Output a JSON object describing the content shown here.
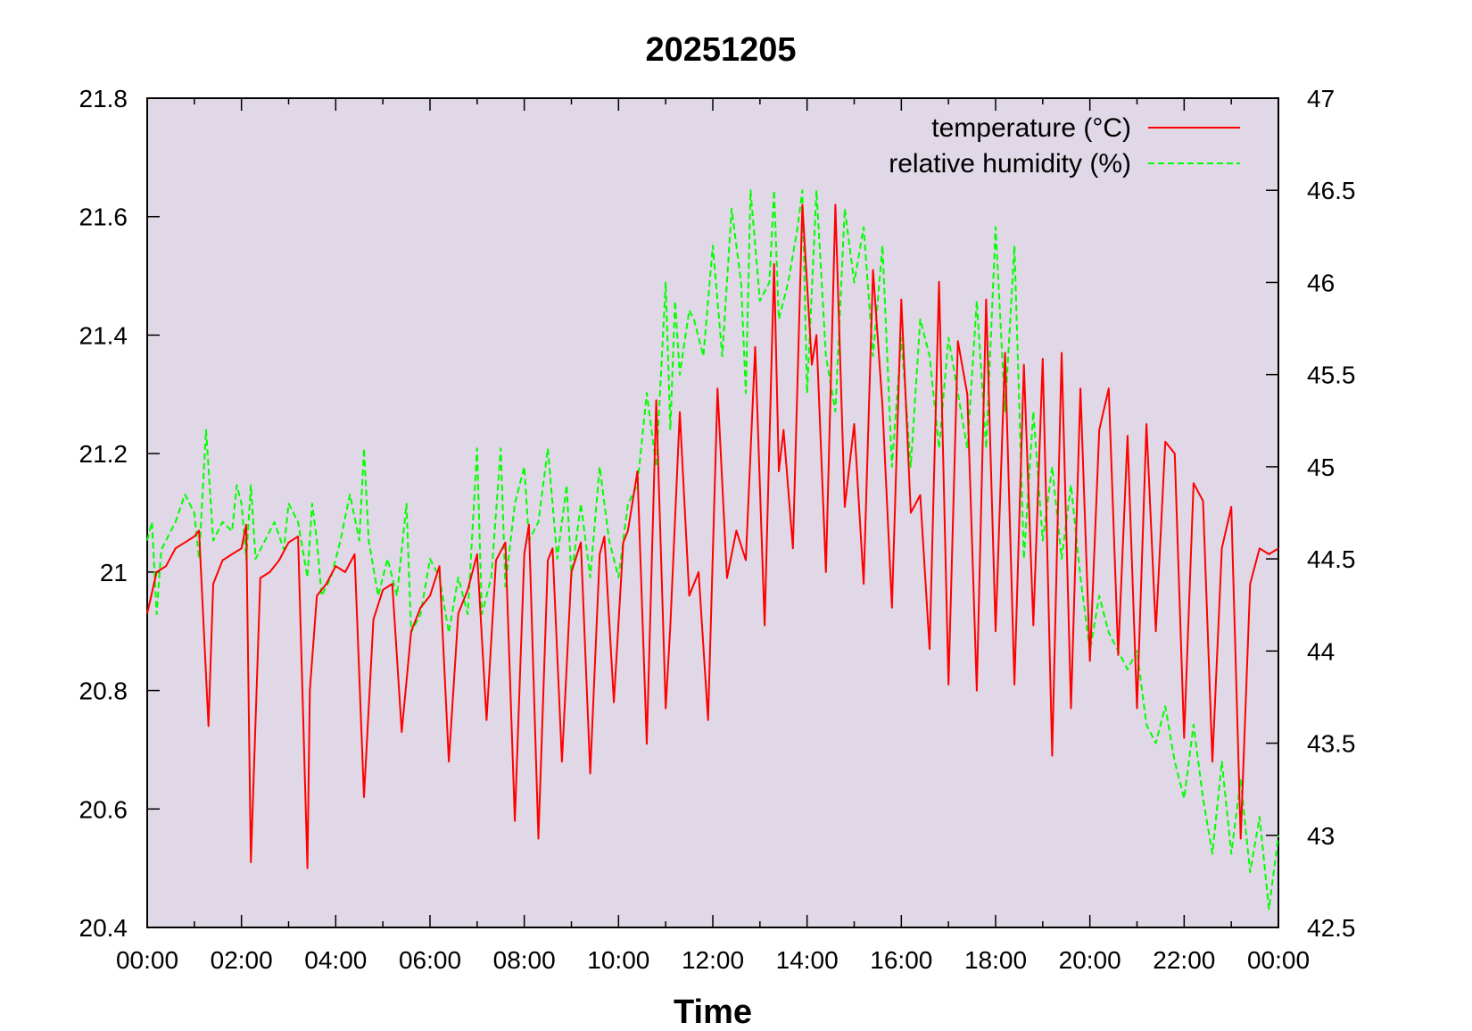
{
  "chart_data": {
    "type": "line",
    "title": "20251205",
    "xlabel": "Time",
    "ylabel": "",
    "y2label": "",
    "xlim": [
      0,
      24
    ],
    "ylim": [
      20.4,
      21.8
    ],
    "y2lim": [
      42.5,
      47
    ],
    "x_ticks": [
      "00:00",
      "02:00",
      "04:00",
      "06:00",
      "08:00",
      "10:00",
      "12:00",
      "14:00",
      "16:00",
      "18:00",
      "20:00",
      "22:00",
      "00:00"
    ],
    "y_ticks": [
      "20.4",
      "20.6",
      "20.8",
      "21",
      "21.2",
      "21.4",
      "21.6",
      "21.8"
    ],
    "y2_ticks": [
      "42.5",
      "43",
      "43.5",
      "44",
      "44.5",
      "45",
      "45.5",
      "46",
      "46.5",
      "47"
    ],
    "plot_background": "#e0d8e6",
    "legend_position": "top-right",
    "series": [
      {
        "name": "temperature (°C)",
        "axis": "left",
        "color": "#ff0000",
        "style": "solid",
        "x": [
          0.0,
          0.2,
          0.4,
          0.6,
          0.8,
          1.0,
          1.1,
          1.3,
          1.4,
          1.6,
          1.8,
          2.0,
          2.1,
          2.2,
          2.4,
          2.6,
          2.8,
          3.0,
          3.2,
          3.4,
          3.45,
          3.6,
          3.8,
          4.0,
          4.2,
          4.4,
          4.6,
          4.8,
          5.0,
          5.2,
          5.4,
          5.6,
          5.8,
          6.0,
          6.2,
          6.4,
          6.6,
          6.8,
          7.0,
          7.2,
          7.4,
          7.6,
          7.8,
          8.0,
          8.1,
          8.3,
          8.5,
          8.6,
          8.8,
          9.0,
          9.2,
          9.4,
          9.6,
          9.7,
          9.9,
          10.1,
          10.2,
          10.4,
          10.6,
          10.8,
          11.0,
          11.1,
          11.3,
          11.5,
          11.7,
          11.9,
          12.1,
          12.3,
          12.5,
          12.7,
          12.9,
          13.1,
          13.3,
          13.4,
          13.5,
          13.7,
          13.9,
          14.1,
          14.2,
          14.4,
          14.6,
          14.8,
          15.0,
          15.2,
          15.4,
          15.6,
          15.8,
          16.0,
          16.2,
          16.4,
          16.6,
          16.8,
          17.0,
          17.2,
          17.4,
          17.6,
          17.8,
          18.0,
          18.2,
          18.4,
          18.6,
          18.8,
          19.0,
          19.2,
          19.4,
          19.6,
          19.8,
          20.0,
          20.2,
          20.4,
          20.6,
          20.8,
          21.0,
          21.2,
          21.4,
          21.6,
          21.8,
          22.0,
          22.2,
          22.4,
          22.6,
          22.8,
          23.0,
          23.2,
          23.4,
          23.6,
          23.8,
          24.0
        ],
        "values": [
          20.93,
          21.0,
          21.01,
          21.04,
          21.05,
          21.06,
          21.07,
          20.74,
          20.98,
          21.02,
          21.03,
          21.04,
          21.08,
          20.51,
          20.99,
          21.0,
          21.02,
          21.05,
          21.06,
          20.5,
          20.8,
          20.96,
          20.98,
          21.01,
          21.0,
          21.03,
          20.62,
          20.92,
          20.97,
          20.98,
          20.73,
          20.9,
          20.94,
          20.96,
          21.01,
          20.68,
          20.93,
          20.97,
          21.03,
          20.75,
          21.02,
          21.05,
          20.58,
          21.03,
          21.08,
          20.55,
          21.02,
          21.04,
          20.68,
          21.0,
          21.05,
          20.66,
          21.03,
          21.06,
          20.78,
          21.05,
          21.07,
          21.17,
          20.71,
          21.29,
          20.77,
          20.91,
          21.27,
          20.96,
          21.0,
          20.75,
          21.31,
          20.99,
          21.07,
          21.02,
          21.38,
          20.91,
          21.52,
          21.17,
          21.24,
          21.04,
          21.62,
          21.35,
          21.4,
          21.0,
          21.62,
          21.11,
          21.25,
          20.98,
          21.51,
          21.28,
          20.94,
          21.46,
          21.1,
          21.13,
          20.87,
          21.49,
          20.81,
          21.39,
          21.3,
          20.8,
          21.46,
          20.9,
          21.37,
          20.81,
          21.35,
          20.91,
          21.36,
          20.69,
          21.37,
          20.77,
          21.31,
          20.85,
          21.24,
          21.31,
          20.86,
          21.23,
          20.77,
          21.25,
          20.9,
          21.22,
          21.2,
          20.72,
          21.15,
          21.12,
          20.68,
          21.04,
          21.11,
          20.55,
          20.98,
          21.04,
          21.03,
          21.04
        ],
        "markers": false
      },
      {
        "name": "relative humidity (%)",
        "axis": "right",
        "color": "#00ff00",
        "style": "dashed",
        "x": [
          0.0,
          0.1,
          0.2,
          0.3,
          0.4,
          0.6,
          0.8,
          1.0,
          1.1,
          1.25,
          1.4,
          1.6,
          1.8,
          1.9,
          2.0,
          2.1,
          2.2,
          2.3,
          2.5,
          2.7,
          2.9,
          3.0,
          3.2,
          3.4,
          3.5,
          3.6,
          3.7,
          3.9,
          4.1,
          4.3,
          4.5,
          4.6,
          4.7,
          4.9,
          5.1,
          5.3,
          5.5,
          5.6,
          5.8,
          6.0,
          6.2,
          6.4,
          6.6,
          6.8,
          7.0,
          7.1,
          7.3,
          7.5,
          7.6,
          7.8,
          8.0,
          8.1,
          8.3,
          8.5,
          8.7,
          8.9,
          9.0,
          9.2,
          9.4,
          9.6,
          9.8,
          10.0,
          10.2,
          10.4,
          10.6,
          10.8,
          11.0,
          11.1,
          11.2,
          11.3,
          11.5,
          11.6,
          11.8,
          12.0,
          12.2,
          12.4,
          12.6,
          12.7,
          12.8,
          13.0,
          13.2,
          13.3,
          13.4,
          13.6,
          13.8,
          13.9,
          14.0,
          14.2,
          14.4,
          14.6,
          14.8,
          15.0,
          15.2,
          15.4,
          15.6,
          15.8,
          16.0,
          16.2,
          16.4,
          16.6,
          16.8,
          17.0,
          17.2,
          17.4,
          17.6,
          17.8,
          18.0,
          18.2,
          18.4,
          18.6,
          18.8,
          19.0,
          19.2,
          19.4,
          19.6,
          19.8,
          20.0,
          20.2,
          20.4,
          20.6,
          20.8,
          21.0,
          21.2,
          21.4,
          21.6,
          21.8,
          22.0,
          22.2,
          22.4,
          22.6,
          22.8,
          23.0,
          23.2,
          23.4,
          23.6,
          23.8,
          24.0
        ],
        "values": [
          44.6,
          44.7,
          44.2,
          44.55,
          44.6,
          44.7,
          44.85,
          44.75,
          44.5,
          45.2,
          44.6,
          44.7,
          44.65,
          44.9,
          44.8,
          44.5,
          44.9,
          44.5,
          44.6,
          44.7,
          44.55,
          44.8,
          44.7,
          44.4,
          44.8,
          44.6,
          44.3,
          44.4,
          44.6,
          44.85,
          44.6,
          45.1,
          44.6,
          44.3,
          44.5,
          44.3,
          44.8,
          44.1,
          44.2,
          44.5,
          44.4,
          44.1,
          44.4,
          44.2,
          45.1,
          44.2,
          44.4,
          45.1,
          44.35,
          44.8,
          45.0,
          44.6,
          44.7,
          45.1,
          44.5,
          44.9,
          44.4,
          44.8,
          44.4,
          45.0,
          44.6,
          44.4,
          44.8,
          44.9,
          45.4,
          45.0,
          46.0,
          45.2,
          45.9,
          45.5,
          45.85,
          45.8,
          45.6,
          46.2,
          45.6,
          46.4,
          46.0,
          45.4,
          46.5,
          45.9,
          46.0,
          46.5,
          45.8,
          46.0,
          46.3,
          46.5,
          45.4,
          46.5,
          45.6,
          45.3,
          46.4,
          46.0,
          46.3,
          45.6,
          46.2,
          45.0,
          45.7,
          45.0,
          45.8,
          45.6,
          45.1,
          45.7,
          45.4,
          45.1,
          45.9,
          45.1,
          46.3,
          45.3,
          46.2,
          44.5,
          45.3,
          44.6,
          45.0,
          44.5,
          44.9,
          44.4,
          44.0,
          44.3,
          44.1,
          44.0,
          43.9,
          44.0,
          43.6,
          43.5,
          43.7,
          43.4,
          43.2,
          43.6,
          43.2,
          42.9,
          43.4,
          42.9,
          43.3,
          42.8,
          43.1,
          42.6,
          43.0
        ]
      }
    ]
  }
}
